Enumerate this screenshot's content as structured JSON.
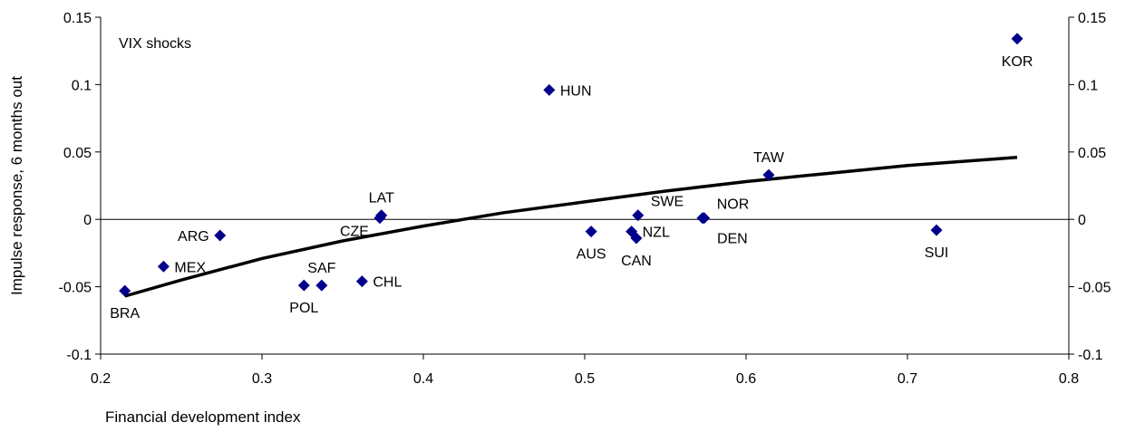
{
  "chart_data": {
    "type": "scatter",
    "annotation": "VIX shocks",
    "xlabel": "Financial development index",
    "ylabel": "Impulse response, 6 months out",
    "xlim": [
      0.2,
      0.8
    ],
    "ylim": [
      -0.1,
      0.15
    ],
    "x_ticks": [
      0.2,
      0.3,
      0.4,
      0.5,
      0.6,
      0.7,
      0.8
    ],
    "x_tick_labels": [
      "0.2",
      "0.3",
      "0.4",
      "0.5",
      "0.6",
      "0.7",
      "0.8"
    ],
    "y_ticks": [
      -0.1,
      -0.05,
      0,
      0.05,
      0.1,
      0.15
    ],
    "y_tick_labels": [
      "-0.1",
      "-0.05",
      "0",
      "0.05",
      "0.1",
      "0.15"
    ],
    "right_y_axis": true,
    "grid": false,
    "marker_color": "#00008B",
    "trend_color": "#000000",
    "points": [
      {
        "label": "BRA",
        "x": 0.215,
        "y": -0.053,
        "label_pos": "below"
      },
      {
        "label": "MEX",
        "x": 0.239,
        "y": -0.035,
        "label_pos": "right"
      },
      {
        "label": "ARG",
        "x": 0.274,
        "y": -0.012,
        "label_pos": "left"
      },
      {
        "label": "POL",
        "x": 0.326,
        "y": -0.049,
        "label_pos": "below"
      },
      {
        "label": "SAF",
        "x": 0.337,
        "y": -0.049,
        "label_pos": "above"
      },
      {
        "label": "CHL",
        "x": 0.362,
        "y": -0.046,
        "label_pos": "right"
      },
      {
        "label": "CZE",
        "x": 0.373,
        "y": 0.001,
        "label_pos": "below-left"
      },
      {
        "label": "LAT",
        "x": 0.374,
        "y": 0.003,
        "label_pos": "above"
      },
      {
        "label": "HUN",
        "x": 0.478,
        "y": 0.096,
        "label_pos": "right"
      },
      {
        "label": "AUS",
        "x": 0.504,
        "y": -0.009,
        "label_pos": "below"
      },
      {
        "label": "NZL",
        "x": 0.529,
        "y": -0.009,
        "label_pos": "right"
      },
      {
        "label": "CAN",
        "x": 0.532,
        "y": -0.014,
        "label_pos": "below"
      },
      {
        "label": "SWE",
        "x": 0.533,
        "y": 0.003,
        "label_pos": "above-right"
      },
      {
        "label": "DEN",
        "x": 0.573,
        "y": 0.001,
        "label_pos": "below-right"
      },
      {
        "label": "NOR",
        "x": 0.574,
        "y": 0.001,
        "label_pos": "above-right"
      },
      {
        "label": "TAW",
        "x": 0.614,
        "y": 0.033,
        "label_pos": "above"
      },
      {
        "label": "SUI",
        "x": 0.718,
        "y": -0.008,
        "label_pos": "below"
      },
      {
        "label": "KOR",
        "x": 0.768,
        "y": 0.134,
        "label_pos": "below"
      }
    ],
    "trend_line": {
      "type": "logarithmic",
      "x": [
        0.215,
        0.25,
        0.3,
        0.35,
        0.4,
        0.45,
        0.5,
        0.55,
        0.6,
        0.65,
        0.7,
        0.768
      ],
      "y": [
        -0.057,
        -0.045,
        -0.029,
        -0.016,
        -0.005,
        0.005,
        0.013,
        0.021,
        0.028,
        0.034,
        0.04,
        0.046
      ]
    }
  }
}
